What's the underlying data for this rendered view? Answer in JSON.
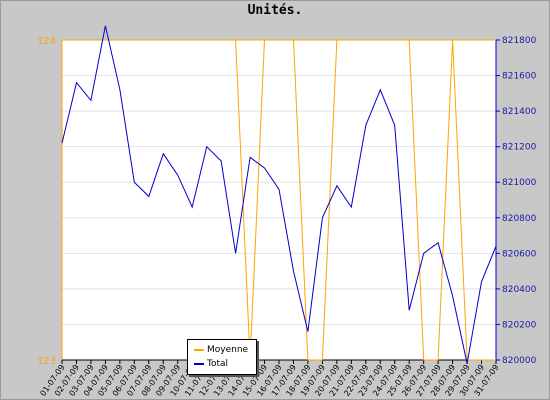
{
  "chart_data": {
    "type": "line",
    "title": "Unités.",
    "xlabel": "",
    "ylabel_left": "",
    "ylabel_right": "",
    "x": [
      "01-07-09",
      "02-07-09",
      "03-07-09",
      "04-07-09",
      "05-07-09",
      "06-07-09",
      "07-07-09",
      "08-07-09",
      "09-07-09",
      "10-07-09",
      "11-07-09",
      "12-07-09",
      "13-07-09",
      "14-07-09",
      "15-07-09",
      "16-07-09",
      "17-07-09",
      "18-07-09",
      "19-07-09",
      "20-07-09",
      "21-07-09",
      "22-07-09",
      "23-07-09",
      "24-07-09",
      "25-07-09",
      "26-07-09",
      "27-07-09",
      "28-07-09",
      "29-07-09",
      "30-07-09",
      "31-07-09"
    ],
    "left_axis": {
      "ylim": [
        123,
        124
      ],
      "ticks": [
        "123",
        "124"
      ],
      "color": "#ffa500"
    },
    "right_axis": {
      "ylim": [
        820000,
        821800
      ],
      "ticks": [
        "820000",
        "820200",
        "820400",
        "820600",
        "820800",
        "821000",
        "821200",
        "821400",
        "821600",
        "821800"
      ],
      "color": "#0000cc"
    },
    "series": [
      {
        "name": "Moyenne",
        "axis": "left",
        "color": "#ffa500",
        "values": [
          124,
          124,
          124,
          124,
          124,
          124,
          124,
          124,
          124,
          124,
          124,
          124,
          124,
          123,
          124,
          124,
          124,
          123,
          123,
          124,
          124,
          124,
          124,
          124,
          124,
          123,
          123,
          124,
          123,
          123,
          123
        ]
      },
      {
        "name": "Total",
        "axis": "right",
        "color": "#0000cc",
        "values": [
          821220,
          821560,
          821460,
          821880,
          821520,
          821000,
          820920,
          821160,
          821040,
          820860,
          821200,
          821120,
          820600,
          821140,
          821080,
          820960,
          820500,
          820160,
          820800,
          820980,
          820860,
          821320,
          821520,
          821320,
          820280,
          820600,
          820660,
          820360,
          819980,
          820440,
          820640
        ]
      }
    ],
    "grid": true,
    "legend_position": "bottom-center"
  }
}
